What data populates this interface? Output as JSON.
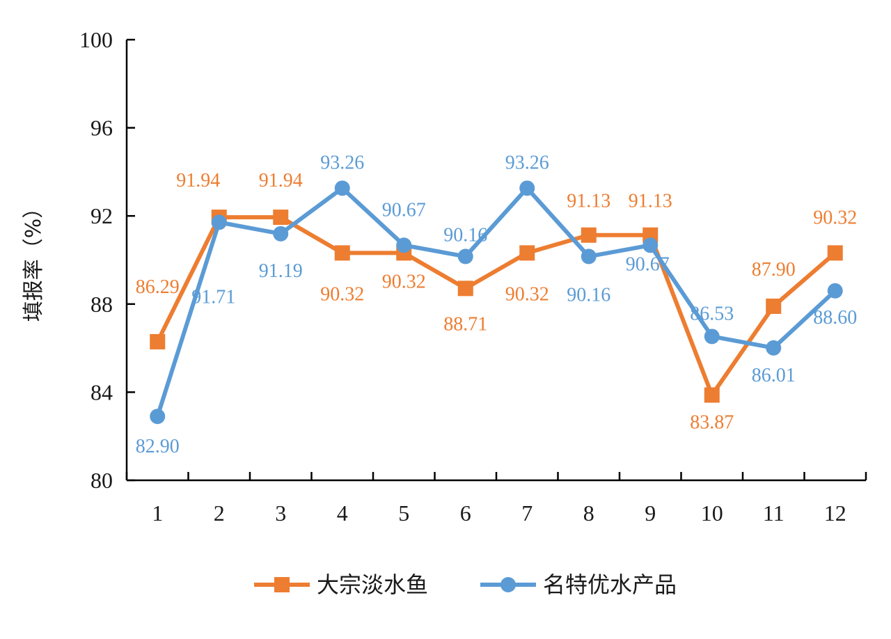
{
  "chart_data": {
    "type": "line",
    "title": "",
    "xlabel": "",
    "ylabel": "填报率（%）",
    "categories": [
      "1",
      "2",
      "3",
      "4",
      "5",
      "6",
      "7",
      "8",
      "9",
      "10",
      "11",
      "12"
    ],
    "ylim": [
      80,
      100
    ],
    "yticks": [
      "80",
      "84",
      "88",
      "92",
      "96",
      "100"
    ],
    "grid": false,
    "legend": "bottom",
    "series": [
      {
        "name": "大宗淡水鱼",
        "color": "#ED7D31",
        "marker": "square",
        "values": [
          86.29,
          91.94,
          91.94,
          90.32,
          90.32,
          88.71,
          90.32,
          91.13,
          91.13,
          83.87,
          87.9,
          90.32
        ],
        "labels": [
          "86.29",
          "91.94",
          "91.94",
          "90.32",
          "90.32",
          "88.71",
          "90.32",
          "91.13",
          "91.13",
          "83.87",
          "87.90",
          "90.32"
        ]
      },
      {
        "name": "名特优水产品",
        "color": "#5B9BD5",
        "marker": "circle",
        "values": [
          82.9,
          91.71,
          91.19,
          93.26,
          90.67,
          90.16,
          93.26,
          90.16,
          90.67,
          86.53,
          86.01,
          88.6
        ],
        "labels": [
          "82.90",
          "91.71",
          "91.19",
          "93.26",
          "90.67",
          "90.16",
          "93.26",
          "90.16",
          "90.67",
          "86.53",
          "86.01",
          "88.60"
        ]
      }
    ]
  }
}
